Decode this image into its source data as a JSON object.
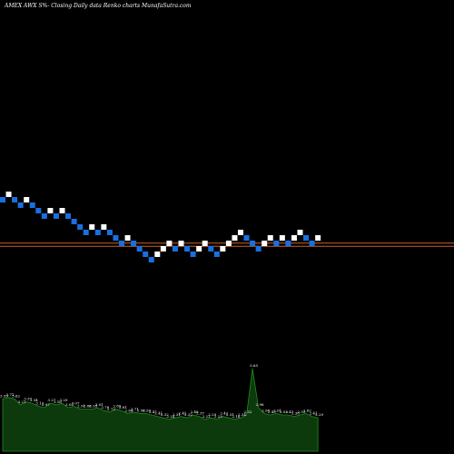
{
  "chart_data": {
    "type": "renko",
    "title": "AMEX  AWX  S%-  Closing Daily data  Renko  charts MunafaSutra.com",
    "xlabel": "",
    "ylabel": "",
    "grid": false,
    "colors": {
      "background": "#000000",
      "up_brick": "#ffffff",
      "down_brick": "#1a6fe0",
      "reference_line": "#c8602a",
      "volume_area": "#0d3a0d",
      "volume_edge": "#1e8c1e",
      "text": "#ffffff"
    },
    "bricks": [
      {
        "level": 25,
        "dir": "down"
      },
      {
        "level": 26,
        "dir": "up"
      },
      {
        "level": 25,
        "dir": "down"
      },
      {
        "level": 24,
        "dir": "down"
      },
      {
        "level": 25,
        "dir": "up"
      },
      {
        "level": 24,
        "dir": "down"
      },
      {
        "level": 23,
        "dir": "down"
      },
      {
        "level": 22,
        "dir": "down"
      },
      {
        "level": 23,
        "dir": "up"
      },
      {
        "level": 22,
        "dir": "down"
      },
      {
        "level": 23,
        "dir": "up"
      },
      {
        "level": 22,
        "dir": "down"
      },
      {
        "level": 21,
        "dir": "down"
      },
      {
        "level": 20,
        "dir": "down"
      },
      {
        "level": 19,
        "dir": "down"
      },
      {
        "level": 20,
        "dir": "up"
      },
      {
        "level": 19,
        "dir": "down"
      },
      {
        "level": 20,
        "dir": "up"
      },
      {
        "level": 19,
        "dir": "down"
      },
      {
        "level": 18,
        "dir": "down"
      },
      {
        "level": 17,
        "dir": "down"
      },
      {
        "level": 18,
        "dir": "up"
      },
      {
        "level": 17,
        "dir": "down"
      },
      {
        "level": 16,
        "dir": "down"
      },
      {
        "level": 15,
        "dir": "down"
      },
      {
        "level": 14,
        "dir": "down"
      },
      {
        "level": 15,
        "dir": "up"
      },
      {
        "level": 16,
        "dir": "up"
      },
      {
        "level": 17,
        "dir": "up"
      },
      {
        "level": 16,
        "dir": "down"
      },
      {
        "level": 17,
        "dir": "up"
      },
      {
        "level": 16,
        "dir": "down"
      },
      {
        "level": 15,
        "dir": "down"
      },
      {
        "level": 16,
        "dir": "up"
      },
      {
        "level": 17,
        "dir": "up"
      },
      {
        "level": 16,
        "dir": "down"
      },
      {
        "level": 15,
        "dir": "down"
      },
      {
        "level": 16,
        "dir": "up"
      },
      {
        "level": 17,
        "dir": "up"
      },
      {
        "level": 18,
        "dir": "up"
      },
      {
        "level": 19,
        "dir": "up"
      },
      {
        "level": 18,
        "dir": "down"
      },
      {
        "level": 17,
        "dir": "down"
      },
      {
        "level": 16,
        "dir": "down"
      },
      {
        "level": 17,
        "dir": "up"
      },
      {
        "level": 18,
        "dir": "up"
      },
      {
        "level": 17,
        "dir": "down"
      },
      {
        "level": 18,
        "dir": "up"
      },
      {
        "level": 17,
        "dir": "down"
      },
      {
        "level": 18,
        "dir": "up"
      },
      {
        "level": 19,
        "dir": "up"
      },
      {
        "level": 18,
        "dir": "down"
      },
      {
        "level": 17,
        "dir": "down"
      },
      {
        "level": 18,
        "dir": "up"
      }
    ],
    "reference_lines": [
      16.55,
      15.95
    ],
    "volume": {
      "values": [
        3.6,
        3.7,
        3.6,
        3.2,
        3.4,
        3.3,
        3.1,
        3.0,
        3.3,
        3.2,
        3.3,
        3.0,
        3.1,
        2.9,
        2.9,
        2.9,
        3.0,
        2.8,
        2.7,
        2.9,
        2.8,
        2.6,
        2.7,
        2.6,
        2.6,
        2.5,
        2.4,
        2.3,
        2.2,
        2.3,
        2.4,
        2.3,
        2.5,
        2.4,
        2.2,
        2.3,
        2.2,
        2.4,
        2.3,
        2.2,
        2.3,
        2.5,
        5.7,
        3.0,
        2.6,
        2.5,
        2.6,
        2.5,
        2.5,
        2.4,
        2.5,
        2.6,
        2.4,
        2.3
      ],
      "labels": [
        "3.59",
        "3.71",
        "3.62",
        "3.21",
        "3.37",
        "3.34",
        "3.13",
        "2.97",
        "3.27",
        "3.16",
        "3.29",
        "3.02",
        "3.07",
        "2.91",
        "2.88",
        "2.93",
        "3.01",
        "2.78",
        "2.73",
        "2.89",
        "2.81",
        "2.64",
        "2.71",
        "2.58",
        "2.59",
        "2.47",
        "2.41",
        "2.32",
        "2.24",
        "2.31",
        "2.41",
        "2.32",
        "2.48",
        "2.37",
        "2.21",
        "2.29",
        "2.23",
        "2.42",
        "2.31",
        "2.18",
        "2.34",
        "2.52",
        "5.65",
        "2.98",
        "2.58",
        "2.49",
        "2.61",
        "2.53",
        "2.47",
        "2.38",
        "2.53",
        "2.62",
        "2.41",
        "2.29"
      ]
    }
  }
}
